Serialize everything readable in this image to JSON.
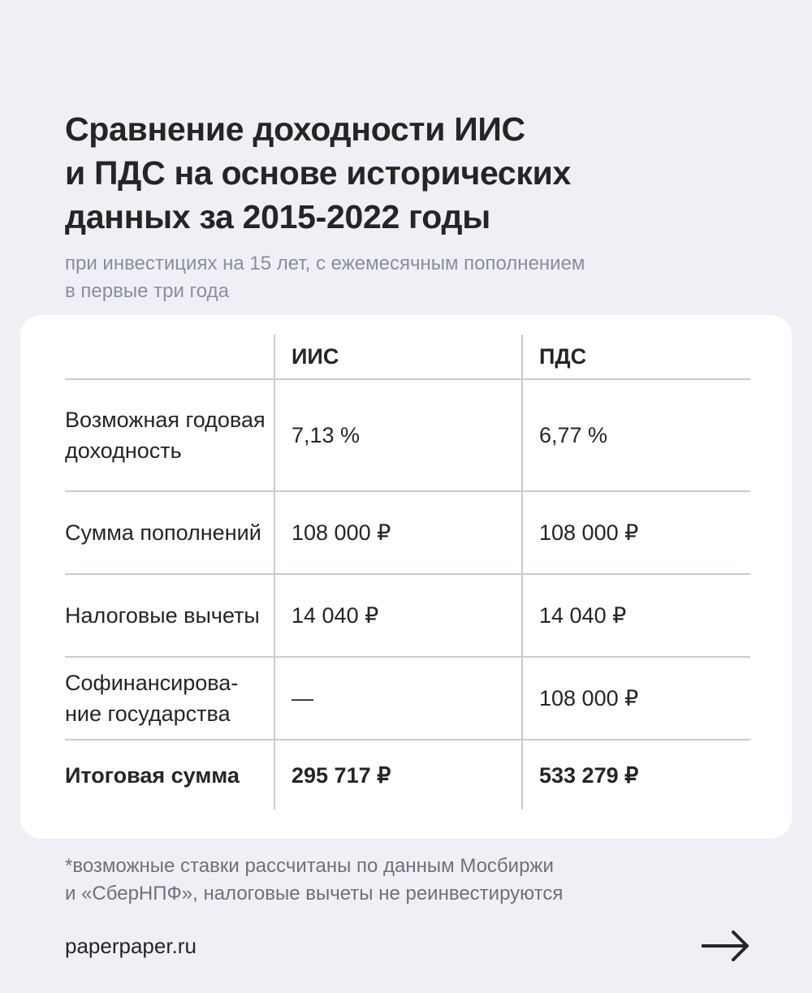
{
  "title": [
    "Сравнение доходности ИИС",
    "и ПДС на основе исторических",
    "данных за 2015-2022 годы"
  ],
  "subtitle": [
    "при инвестициях на 15 лет, с ежемесячным пополнением",
    "в первые три года"
  ],
  "table": {
    "headers": [
      "",
      "ИИС",
      "ПДС"
    ],
    "rows": [
      {
        "label": "Возможная годовая доходность",
        "iis": "7,13 %",
        "pds": "6,77 %"
      },
      {
        "label": "Сумма пополнений",
        "iis": "108 000 ₽",
        "pds": "108 000 ₽"
      },
      {
        "label": "Налоговые вычеты",
        "iis": "14 040 ₽",
        "pds": "14 040 ₽"
      },
      {
        "label": "Софинансирова- ние государства",
        "iis": "—",
        "pds": "108 000 ₽"
      },
      {
        "label": "Итоговая сумма",
        "iis": "295 717 ₽",
        "pds": "533 279 ₽"
      }
    ]
  },
  "footnote": [
    "*возможные ставки рассчитаны по данным Мосбиржи",
    "и «СберНПФ», налоговые вычеты не реинвестируются"
  ],
  "site": "paperpaper.ru",
  "icons": {
    "next": "arrow-right-icon"
  },
  "colors": {
    "background": "#eff0f5",
    "text": "#252525",
    "muted": "#8b8e96"
  }
}
